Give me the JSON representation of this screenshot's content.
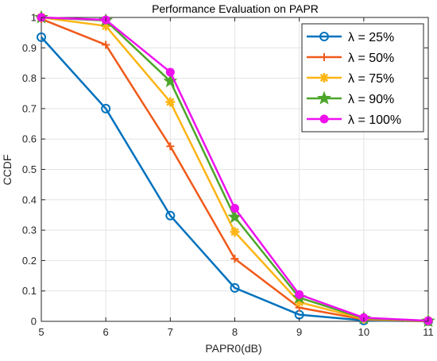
{
  "chart_data": {
    "type": "line",
    "title": "Performance Evaluation on PAPR",
    "xlabel": "PAPR0(dB)",
    "ylabel": "CCDF",
    "xlim": [
      5,
      11
    ],
    "ylim": [
      0,
      1
    ],
    "x_ticks": [
      5,
      6,
      7,
      8,
      9,
      10,
      11
    ],
    "y_ticks": [
      0,
      0.1,
      0.2,
      0.3,
      0.4,
      0.5,
      0.6,
      0.7,
      0.8,
      0.9,
      1
    ],
    "grid": true,
    "legend_position": "top-right",
    "x": [
      5,
      6,
      7,
      8,
      9,
      10,
      11
    ],
    "series": [
      {
        "name": "λ = 25%",
        "color": "#0072BD",
        "marker": "circle",
        "values": [
          0.935,
          0.7,
          0.348,
          0.11,
          0.022,
          0.003,
          0.0
        ]
      },
      {
        "name": "λ = 50%",
        "color": "#F05A1A",
        "marker": "plus",
        "values": [
          0.995,
          0.91,
          0.576,
          0.206,
          0.045,
          0.006,
          0.0
        ]
      },
      {
        "name": "λ = 75%",
        "color": "#FDB515",
        "marker": "asterisk",
        "values": [
          1.0,
          0.972,
          0.722,
          0.294,
          0.063,
          0.008,
          0.001
        ]
      },
      {
        "name": "λ = 90%",
        "color": "#4DA62A",
        "marker": "star",
        "values": [
          1.0,
          0.99,
          0.79,
          0.343,
          0.078,
          0.01,
          0.001
        ]
      },
      {
        "name": "λ = 100%",
        "color": "#EE11EE",
        "marker": "circle-filled",
        "values": [
          1.0,
          0.992,
          0.82,
          0.372,
          0.088,
          0.012,
          0.002
        ]
      }
    ]
  }
}
